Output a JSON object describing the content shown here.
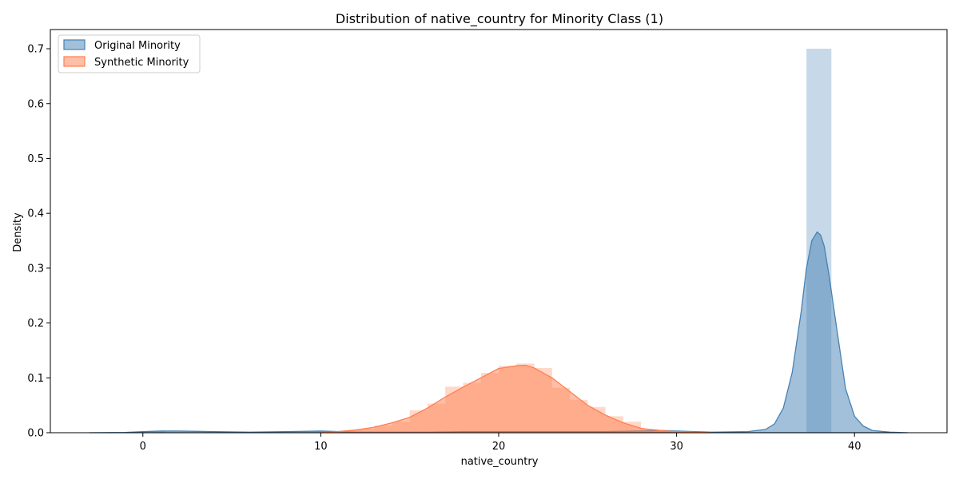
{
  "chart_data": {
    "type": "area",
    "title": "Distribution of native_country for Minority Class (1)",
    "xlabel": "native_country",
    "ylabel": "Density",
    "xlim": [
      -5.2,
      45.2
    ],
    "ylim": [
      0,
      0.735
    ],
    "xticks": [
      0,
      10,
      20,
      30,
      40
    ],
    "yticks": [
      0.0,
      0.1,
      0.2,
      0.3,
      0.4,
      0.5,
      0.6,
      0.7
    ],
    "grid": false,
    "legend": "top-left",
    "series": [
      {
        "name": "Original Minority",
        "color": "#4682b4",
        "histogram": [
          {
            "x0": 37.3,
            "x1": 38.7,
            "density": 0.7
          },
          {
            "x0": 0.0,
            "x1": 1.3,
            "density": 0.003
          },
          {
            "x0": 8.0,
            "x1": 10.0,
            "density": 0.003
          },
          {
            "x0": 28.3,
            "x1": 29.6,
            "density": 0.005
          }
        ],
        "kde": {
          "x": [
            -3,
            -1,
            0,
            1,
            2,
            4,
            6,
            8,
            10,
            12,
            14,
            16,
            18,
            20,
            22,
            24,
            26,
            28,
            29,
            30,
            32,
            34,
            35,
            35.5,
            36,
            36.5,
            37,
            37.3,
            37.6,
            37.9,
            38.1,
            38.3,
            38.6,
            39,
            39.5,
            40,
            40.5,
            41,
            42,
            43
          ],
          "y": [
            0,
            0.0005,
            0.002,
            0.003,
            0.003,
            0.002,
            0.001,
            0.002,
            0.003,
            0.001,
            0.001,
            0.001,
            0.002,
            0.002,
            0.002,
            0.002,
            0.002,
            0.003,
            0.004,
            0.003,
            0.001,
            0.002,
            0.006,
            0.016,
            0.045,
            0.11,
            0.22,
            0.3,
            0.35,
            0.366,
            0.36,
            0.34,
            0.28,
            0.19,
            0.08,
            0.03,
            0.012,
            0.004,
            0.001,
            0
          ]
        }
      },
      {
        "name": "Synthetic Minority",
        "color": "#ff7f50",
        "histogram": [
          {
            "x0": 11.0,
            "x1": 12.0,
            "density": 0.004
          },
          {
            "x0": 12.0,
            "x1": 13.0,
            "density": 0.007
          },
          {
            "x0": 13.0,
            "x1": 14.0,
            "density": 0.013
          },
          {
            "x0": 14.0,
            "x1": 15.0,
            "density": 0.02
          },
          {
            "x0": 15.0,
            "x1": 16.0,
            "density": 0.041
          },
          {
            "x0": 16.0,
            "x1": 17.0,
            "density": 0.053
          },
          {
            "x0": 17.0,
            "x1": 18.0,
            "density": 0.084
          },
          {
            "x0": 18.0,
            "x1": 19.0,
            "density": 0.091
          },
          {
            "x0": 19.0,
            "x1": 20.0,
            "density": 0.109
          },
          {
            "x0": 20.0,
            "x1": 21.0,
            "density": 0.122
          },
          {
            "x0": 21.0,
            "x1": 22.0,
            "density": 0.126
          },
          {
            "x0": 22.0,
            "x1": 23.0,
            "density": 0.118
          },
          {
            "x0": 23.0,
            "x1": 24.0,
            "density": 0.082
          },
          {
            "x0": 24.0,
            "x1": 25.0,
            "density": 0.06
          },
          {
            "x0": 25.0,
            "x1": 26.0,
            "density": 0.047
          },
          {
            "x0": 26.0,
            "x1": 27.0,
            "density": 0.03
          },
          {
            "x0": 27.0,
            "x1": 28.0,
            "density": 0.02
          },
          {
            "x0": 28.0,
            "x1": 29.0,
            "density": 0.007
          },
          {
            "x0": 29.0,
            "x1": 30.0,
            "density": 0.004
          }
        ],
        "kde": {
          "x": [
            10,
            11,
            12,
            13,
            14,
            15,
            16,
            17,
            18,
            19,
            20,
            21,
            21.5,
            22,
            23,
            24,
            25,
            26,
            27,
            28,
            29,
            30,
            31,
            32
          ],
          "y": [
            0,
            0.002,
            0.005,
            0.01,
            0.018,
            0.028,
            0.045,
            0.065,
            0.083,
            0.1,
            0.117,
            0.122,
            0.123,
            0.118,
            0.1,
            0.075,
            0.05,
            0.032,
            0.018,
            0.008,
            0.004,
            0.002,
            0.001,
            0
          ]
        }
      }
    ]
  }
}
